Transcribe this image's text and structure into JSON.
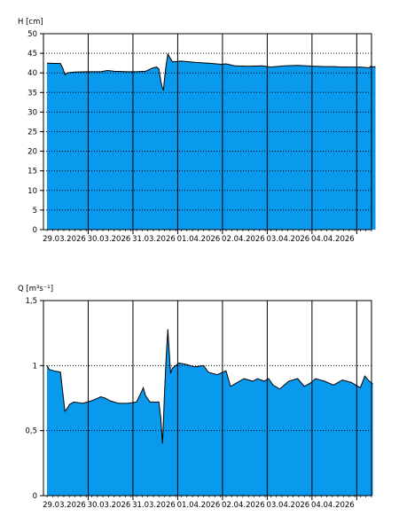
{
  "colors": {
    "fill": "#0a9aed",
    "line": "#000000",
    "background": "#ffffff"
  },
  "chart_data": [
    {
      "type": "area",
      "ylabel": "H [cm]",
      "ylim": [
        0,
        50
      ],
      "y_ticks": [
        0,
        5,
        10,
        15,
        20,
        25,
        30,
        35,
        40,
        45,
        50
      ],
      "y_tick_labels": [
        "0",
        "5",
        "10",
        "15",
        "20",
        "25",
        "30",
        "35",
        "40",
        "45",
        "50"
      ],
      "y_grid_dotted": [
        5,
        10,
        15,
        20,
        25,
        30,
        35,
        40,
        45
      ],
      "xlim": [
        -0.08,
        7.25
      ],
      "day_lines": [
        0.92,
        1.92,
        2.92,
        3.92,
        4.92,
        5.92,
        6.92
      ],
      "x_ticks": [
        0.92,
        1.92,
        2.92,
        3.92,
        4.92,
        5.92,
        6.92
      ],
      "x_tick_labels": [
        "29.03.2026",
        "30.03.2026",
        "31.03.2026",
        "01.04.2026",
        "02.04.2026",
        "03.04.2026",
        "04.04.2026"
      ],
      "x": [
        0,
        0.3,
        0.36,
        0.4,
        0.45,
        0.6,
        0.9,
        1.2,
        1.35,
        1.5,
        1.8,
        2.0,
        2.2,
        2.35,
        2.45,
        2.5,
        2.54,
        2.57,
        2.6,
        2.62,
        2.66,
        2.7,
        2.8,
        3.0,
        3.3,
        3.6,
        3.9,
        4.0,
        4.2,
        4.5,
        4.8,
        5.0,
        5.3,
        5.6,
        5.8,
        6.0,
        6.2,
        6.4,
        6.6,
        6.8,
        7.0,
        7.2,
        7.23,
        7.26,
        7.3,
        7.34
      ],
      "values": [
        42.5,
        42.4,
        41,
        39.5,
        40,
        40.2,
        40.3,
        40.3,
        40.6,
        40.4,
        40.3,
        40.3,
        40.4,
        41.2,
        41.5,
        41,
        38,
        36.5,
        35.5,
        38,
        42,
        44.8,
        42.8,
        43,
        42.7,
        42.5,
        42.2,
        42.3,
        41.8,
        41.7,
        41.8,
        41.5,
        41.8,
        41.9,
        41.8,
        41.7,
        41.6,
        41.6,
        41.5,
        41.5,
        41.5,
        41.3,
        41.7,
        41.5,
        41.6,
        41.5
      ]
    },
    {
      "type": "area",
      "ylabel": "Q [m³s⁻¹]",
      "ylim": [
        0,
        1.5
      ],
      "y_ticks": [
        0,
        0.5,
        1,
        1.5
      ],
      "y_tick_labels": [
        "0",
        "0,5",
        "1",
        "1,5"
      ],
      "y_grid_dotted": [
        0.5,
        1
      ],
      "xlim": [
        -0.08,
        7.25
      ],
      "day_lines": [
        0.92,
        1.92,
        2.92,
        3.92,
        4.92,
        5.92,
        6.92
      ],
      "x_ticks": [
        0.92,
        1.92,
        2.92,
        3.92,
        4.92,
        5.92,
        6.92
      ],
      "x_tick_labels": [
        "29.03.2026",
        "30.03.2026",
        "31.03.2026",
        "01.04.2026",
        "02.04.2026",
        "03.04.2026",
        "04.04.2026"
      ],
      "x": [
        0,
        0.05,
        0.15,
        0.3,
        0.35,
        0.4,
        0.45,
        0.5,
        0.6,
        0.8,
        1.0,
        1.2,
        1.3,
        1.4,
        1.6,
        1.8,
        2.0,
        2.1,
        2.15,
        2.2,
        2.3,
        2.5,
        2.54,
        2.58,
        2.62,
        2.66,
        2.7,
        2.76,
        2.8,
        2.95,
        3.1,
        3.3,
        3.5,
        3.6,
        3.8,
        4.0,
        4.1,
        4.2,
        4.4,
        4.6,
        4.7,
        4.85,
        4.95,
        5.05,
        5.2,
        5.4,
        5.6,
        5.75,
        5.9,
        6.0,
        6.2,
        6.4,
        6.6,
        6.8,
        7.0,
        7.1,
        7.2,
        7.28
      ],
      "values": [
        1.0,
        0.97,
        0.96,
        0.95,
        0.8,
        0.65,
        0.67,
        0.7,
        0.72,
        0.71,
        0.73,
        0.76,
        0.75,
        0.73,
        0.71,
        0.71,
        0.72,
        0.79,
        0.83,
        0.77,
        0.72,
        0.72,
        0.6,
        0.4,
        0.75,
        1.05,
        1.28,
        0.94,
        0.98,
        1.02,
        1.01,
        0.99,
        1.0,
        0.95,
        0.93,
        0.96,
        0.84,
        0.86,
        0.9,
        0.88,
        0.9,
        0.88,
        0.9,
        0.85,
        0.82,
        0.88,
        0.9,
        0.84,
        0.87,
        0.9,
        0.88,
        0.85,
        0.89,
        0.87,
        0.83,
        0.92,
        0.88,
        0.86
      ]
    }
  ]
}
